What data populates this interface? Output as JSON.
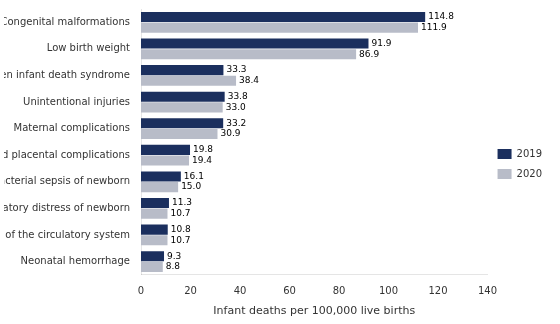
{
  "chart_data": {
    "type": "bar",
    "orientation": "horizontal",
    "categories": [
      "Congenital malformations",
      "Low birth weight",
      "Sudden infant death syndrome",
      "Unintentional injuries",
      "Maternal complications",
      "Cord and placental complications",
      "Bacterial sepsis of newborn",
      "Respiratory distress of newborn",
      "Diseases of the circulatory system",
      "Neonatal hemorrhage"
    ],
    "series": [
      {
        "name": "2019",
        "color": "#1b2f5e",
        "values": [
          114.8,
          91.9,
          33.3,
          33.8,
          33.2,
          19.8,
          16.1,
          11.3,
          10.8,
          9.3
        ],
        "value_labels": [
          "114.8",
          "91.9",
          "33.3",
          "33.8",
          "33.2",
          "19.8",
          "16.1",
          "11.3",
          "10.8",
          "9.3"
        ]
      },
      {
        "name": "2020",
        "color": "#b8bcc8",
        "values": [
          111.9,
          86.9,
          38.4,
          33.0,
          30.9,
          19.4,
          15.0,
          10.7,
          10.7,
          8.8
        ],
        "value_labels": [
          "111.9",
          "86.9",
          "38.4",
          "33.0",
          "30.9",
          "19.4",
          "15.0",
          "10.7",
          "10.7",
          "8.8"
        ]
      }
    ],
    "xlabel": "Infant deaths per 100,000 live births",
    "xlim": [
      0,
      140
    ],
    "xticks": [
      0,
      20,
      40,
      60,
      80,
      100,
      120,
      140
    ],
    "data_labels": true,
    "legend": "right",
    "grid": false
  }
}
